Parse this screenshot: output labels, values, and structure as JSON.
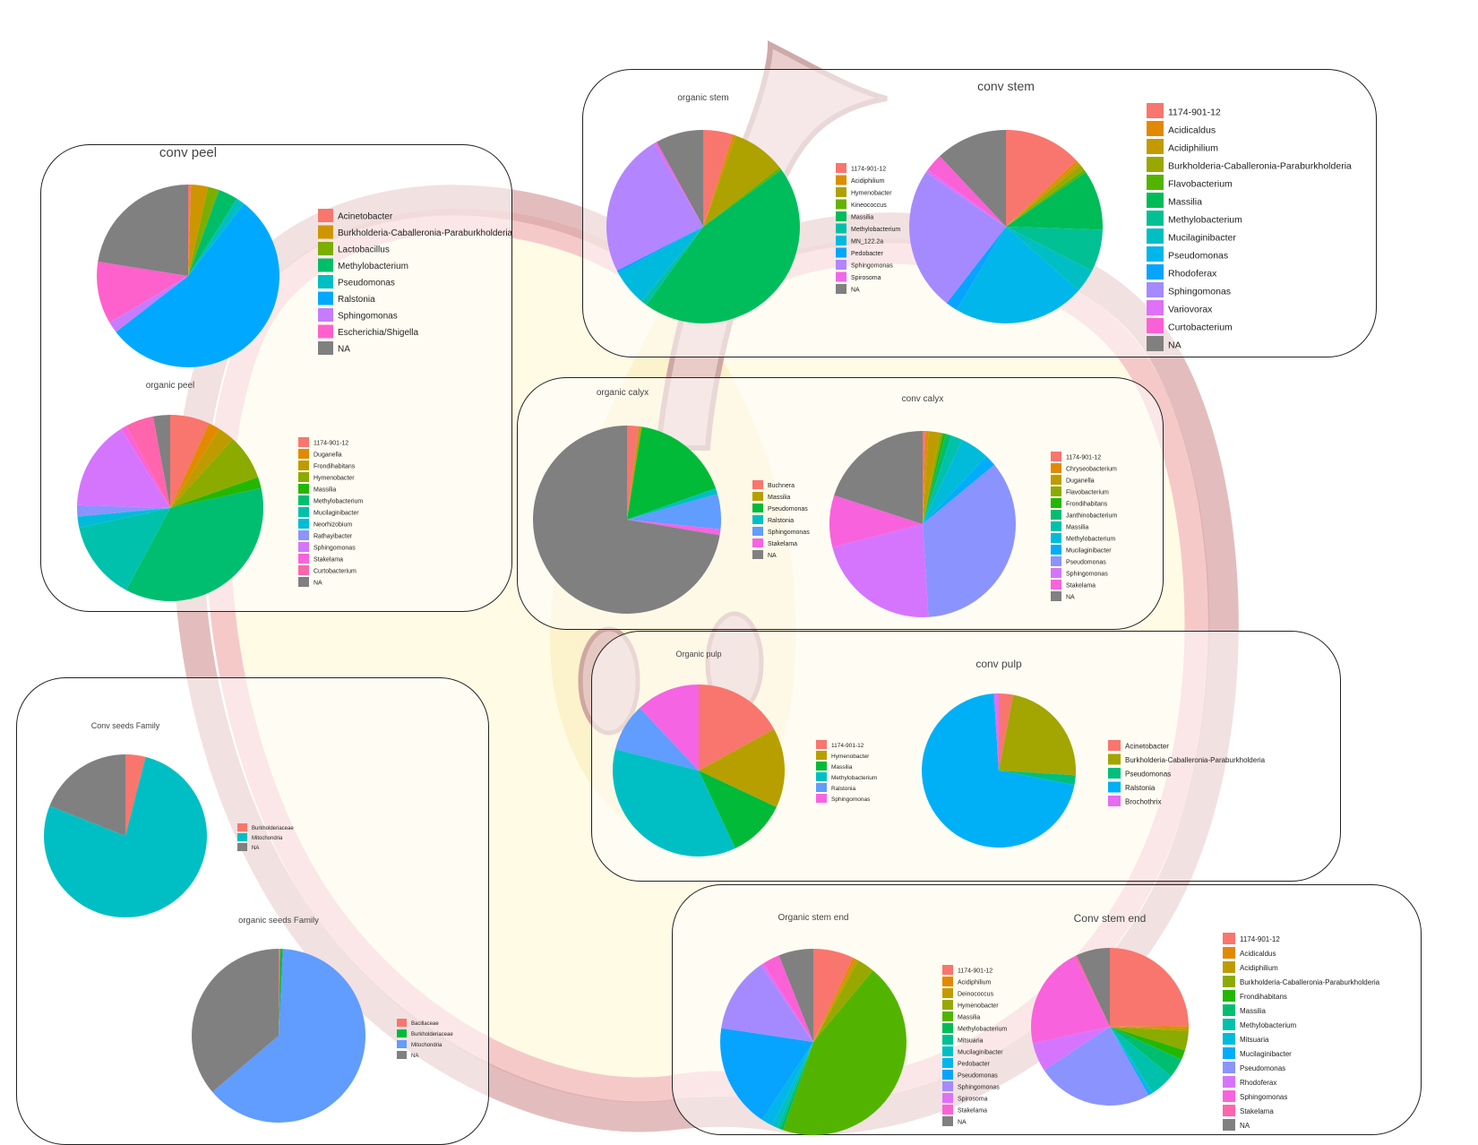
{
  "colors": {
    "grey_na": "#808080",
    "apple_red": "#c0392b"
  },
  "chart_data": [
    {
      "id": "conv_peel",
      "type": "pie",
      "title": "conv peel",
      "legend": [
        "Acinetobacter",
        "Burkholderia-Caballeronia-Paraburkholderia",
        "Lactobacillus",
        "Methylobacterium",
        "Pseudomonas",
        "Ralstonia",
        "Sphingomonas",
        "Escherichia/Shigella",
        "NA"
      ],
      "colors": [
        "#F8766D",
        "#CD9600",
        "#7CAE00",
        "#00BE67",
        "#00BFC4",
        "#00A9FF",
        "#C77CFF",
        "#FF61CC",
        "#808080"
      ],
      "values": [
        0.5,
        3,
        2,
        3.5,
        1.5,
        54,
        2,
        11,
        22.5
      ]
    },
    {
      "id": "organic_peel",
      "type": "pie",
      "title": "organic peel",
      "legend": [
        "1174-901-12",
        "Duganella",
        "Frondihabitans",
        "Hymenobacter",
        "Massilia",
        "Methylobacterium",
        "Mucilaginibacter",
        "Neorhizobium",
        "Rathayibacter",
        "Sphingomonas",
        "Stakelama",
        "Curtobacterium",
        "NA"
      ],
      "colors": [
        "#F8766D",
        "#E18A00",
        "#BE9C00",
        "#8CAB00",
        "#24B700",
        "#00BE70",
        "#00C1AB",
        "#00BBDA",
        "#8B93FF",
        "#D575FE",
        "#F962DD",
        "#FF65AC",
        "#808080"
      ],
      "values": [
        7,
        2,
        3,
        8,
        2,
        37,
        14,
        2,
        2,
        16,
        1,
        5,
        3
      ]
    },
    {
      "id": "organic_stem",
      "type": "pie",
      "title": "organic stem",
      "legend": [
        "1174-901-12",
        "Acidiphilium",
        "Hymenobacter",
        "Kineococcus",
        "Massilia",
        "Methylobacterium",
        "MN_122.2a",
        "Pedobacter",
        "Sphingomonas",
        "Spirosoma",
        "NA"
      ],
      "colors": [
        "#F8766D",
        "#DB8E00",
        "#AEA200",
        "#64B200",
        "#00BD5C",
        "#00C1A7",
        "#00BADE",
        "#00A6FF",
        "#B385FF",
        "#EF67EB",
        "#808080"
      ],
      "values": [
        5,
        0.5,
        9,
        0.5,
        45,
        1,
        6,
        0.5,
        24,
        0.5,
        8
      ]
    },
    {
      "id": "conv_stem",
      "type": "pie",
      "title": "conv stem",
      "legend": [
        "1174-901-12",
        "Acidicaldus",
        "Acidiphilium",
        "Burkholderia-Caballeronia-Paraburkholderia",
        "Flavobacterium",
        "Massilia",
        "Methylobacterium",
        "Mucilaginibacter",
        "Pseudomonas",
        "Rhodoferax",
        "Sphingomonas",
        "Variovorax",
        "Curtobacterium",
        "NA"
      ],
      "colors": [
        "#F8766D",
        "#E38900",
        "#C49A00",
        "#99A800",
        "#53B400",
        "#00BC56",
        "#00C094",
        "#00BFC4",
        "#00B6EB",
        "#06A4FF",
        "#A58AFF",
        "#DF70F8",
        "#FB61D7",
        "#808080"
      ],
      "values": [
        13,
        0.5,
        0.5,
        1,
        0.5,
        10,
        7,
        4,
        22,
        2,
        24,
        0.5,
        3,
        12
      ]
    },
    {
      "id": "organic_calyx",
      "type": "pie",
      "title": "organic calyx",
      "legend": [
        "Buchnera",
        "Massilia",
        "Pseudomonas",
        "Ralstonia",
        "Sphingomonas",
        "Stakelama",
        "NA"
      ],
      "colors": [
        "#F8766D",
        "#B79F00",
        "#00BA38",
        "#00BFC4",
        "#619CFF",
        "#F564E3",
        "#808080"
      ],
      "values": [
        2,
        0.5,
        17,
        1,
        6,
        1,
        72
      ]
    },
    {
      "id": "conv_calyx",
      "type": "pie",
      "title": "conv calyx",
      "legend": [
        "1174-901-12",
        "Chryseobacterium",
        "Duganella",
        "Flavobacterium",
        "Frondihabitans",
        "Janthinobacterium",
        "Massilia",
        "Methylobacterium",
        "Mucilaginibacter",
        "Pseudomonas",
        "Sphingomonas",
        "Stakelama",
        "NA"
      ],
      "colors": [
        "#F8766D",
        "#E18A00",
        "#BE9C00",
        "#8CAB00",
        "#24B700",
        "#00BE70",
        "#00C1AB",
        "#00BBDA",
        "#00ACFC",
        "#8B93FF",
        "#D575FE",
        "#F962DD",
        "#808080"
      ],
      "values": [
        0.5,
        0.5,
        2,
        0.5,
        0.5,
        1,
        2,
        5,
        2,
        35,
        22,
        9,
        20
      ]
    },
    {
      "id": "organic_pulp",
      "type": "pie",
      "title": "Organic pulp",
      "legend": [
        "1174-901-12",
        "Hymenobacter",
        "Massilia",
        "Methylobacterium",
        "Ralstonia",
        "Sphingomonas"
      ],
      "colors": [
        "#F8766D",
        "#B79F00",
        "#00BA38",
        "#00BFC4",
        "#619CFF",
        "#F564E3"
      ],
      "values": [
        17,
        15,
        11,
        36,
        9,
        12
      ]
    },
    {
      "id": "conv_pulp",
      "type": "pie",
      "title": "conv pulp",
      "legend": [
        "Acinetobacter",
        "Burkholderia-Caballeronia-Paraburkholderia",
        "Pseudomonas",
        "Ralstonia",
        "Brochothrix"
      ],
      "colors": [
        "#F8766D",
        "#A3A500",
        "#00BF7D",
        "#00B0F6",
        "#E76BF3"
      ],
      "values": [
        3,
        23,
        2,
        71,
        1
      ]
    },
    {
      "id": "conv_seeds",
      "type": "pie",
      "title": "Conv seeds Family",
      "legend": [
        "Burkholderiaceae",
        "Mitochondria",
        "NA"
      ],
      "colors": [
        "#F8766D",
        "#00BFC4",
        "#808080"
      ],
      "values": [
        4,
        77,
        19
      ]
    },
    {
      "id": "organic_seeds",
      "type": "pie",
      "title": "organic seeds Family",
      "legend": [
        "Bacillaceae",
        "Burkholderiaceae",
        "Mitochondria",
        "NA"
      ],
      "colors": [
        "#F8766D",
        "#00BA38",
        "#619CFF",
        "#808080"
      ],
      "values": [
        0.3,
        0.5,
        63,
        36.2
      ]
    },
    {
      "id": "organic_stem_end",
      "type": "pie",
      "title": "Organic stem end",
      "legend": [
        "1174-901-12",
        "Acidiphilium",
        "Deinococcus",
        "Hymenobacter",
        "Massilia",
        "Methylobacterium",
        "Mitsuaria",
        "Mucilaginibacter",
        "Pedobacter",
        "Pseudomonas",
        "Sphingomonas",
        "Spirosoma",
        "Stakelama",
        "NA"
      ],
      "colors": [
        "#F8766D",
        "#E38900",
        "#C49A00",
        "#99A800",
        "#53B400",
        "#00BC56",
        "#00C094",
        "#00BFC4",
        "#00B6EB",
        "#06A4FF",
        "#A58AFF",
        "#DF70F8",
        "#FB61D7",
        "#808080"
      ],
      "values": [
        7,
        0.5,
        0.5,
        3,
        44,
        0.5,
        0.5,
        1,
        2,
        18,
        13,
        0.5,
        3,
        6
      ]
    },
    {
      "id": "conv_stem_end",
      "type": "pie",
      "title": "Conv stem end",
      "legend": [
        "1174-901-12",
        "Acidicaldus",
        "Acidiphilium",
        "Burkholderia-Caballeronia-Paraburkholderia",
        "Frondihabitans",
        "Massilia",
        "Methylobacterium",
        "Mitsuaria",
        "Mucilaginibacter",
        "Pseudomonas",
        "Rhodoferax",
        "Sphingomonas",
        "Stakelama",
        "NA"
      ],
      "colors": [
        "#F8766D",
        "#E18A00",
        "#BE9C00",
        "#8CAB00",
        "#24B700",
        "#00BE70",
        "#00C1AB",
        "#00BBDA",
        "#00ACFC",
        "#8B93FF",
        "#D575FE",
        "#F962DD",
        "#FF65AC",
        "#808080"
      ],
      "values": [
        25,
        0.5,
        0.5,
        4,
        2,
        4,
        5,
        0.5,
        0.5,
        24,
        6,
        21,
        0.5,
        7
      ]
    }
  ]
}
